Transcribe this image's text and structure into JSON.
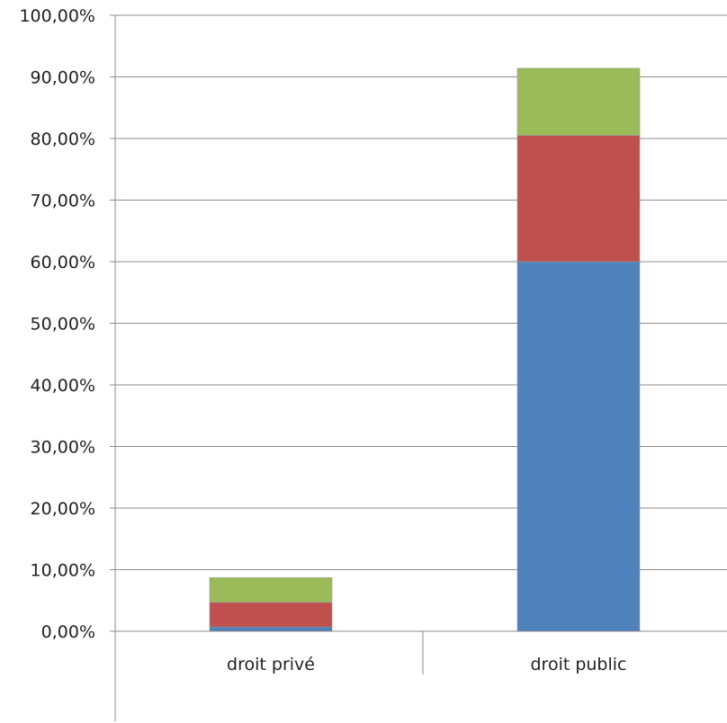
{
  "chart_data": {
    "type": "bar",
    "stacked": true,
    "categories": [
      "droit privé",
      "droit public"
    ],
    "series": [
      {
        "color": "#4F81BD",
        "values": [
          0.7,
          60.0
        ]
      },
      {
        "color": "#C0504D",
        "values": [
          4.0,
          20.5
        ]
      },
      {
        "color": "#9BBB59",
        "values": [
          4.0,
          10.9
        ]
      }
    ],
    "ylim": [
      0,
      100
    ],
    "yticks": [
      {
        "value": 0,
        "label": "0,00%"
      },
      {
        "value": 10,
        "label": "10,00%"
      },
      {
        "value": 20,
        "label": "20,00%"
      },
      {
        "value": 30,
        "label": "30,00%"
      },
      {
        "value": 40,
        "label": "40,00%"
      },
      {
        "value": 50,
        "label": "50,00%"
      },
      {
        "value": 60,
        "label": "60,00%"
      },
      {
        "value": 70,
        "label": "70,00%"
      },
      {
        "value": 80,
        "label": "80,00%"
      },
      {
        "value": 90,
        "label": "90,00%"
      },
      {
        "value": 100,
        "label": "100,00%"
      }
    ],
    "grid": true,
    "legend": "none"
  }
}
